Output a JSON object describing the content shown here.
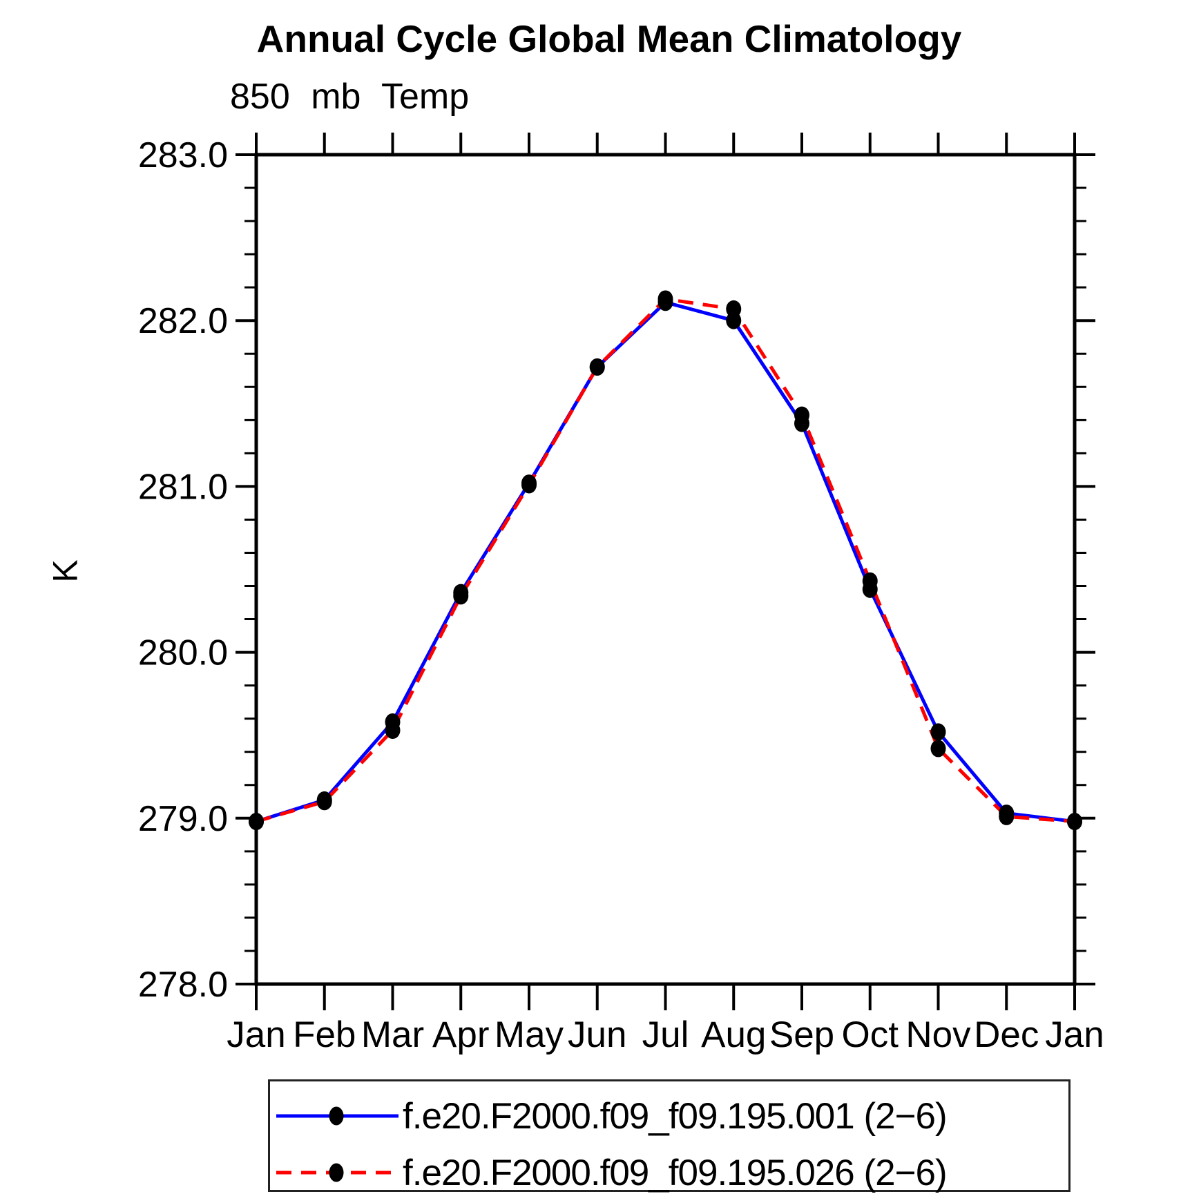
{
  "chart_data": {
    "type": "line",
    "title": "Annual Cycle Global Mean Climatology",
    "subtitle": "850 mb Temp",
    "ylabel": "K",
    "xlabel": "",
    "categories": [
      "Jan",
      "Feb",
      "Mar",
      "Apr",
      "May",
      "Jun",
      "Jul",
      "Aug",
      "Sep",
      "Oct",
      "Nov",
      "Dec",
      "Jan"
    ],
    "series": [
      {
        "name": "f.e20.F2000.f09_f09.195.001 (2−6)",
        "line_color": "#0000ff",
        "line_style": "solid",
        "marker": "filled-circle",
        "marker_color": "#000000",
        "values": [
          278.98,
          279.11,
          279.58,
          280.36,
          281.02,
          281.72,
          282.11,
          282.0,
          281.38,
          280.38,
          279.52,
          279.03,
          278.98
        ]
      },
      {
        "name": "f.e20.F2000.f09_f09.195.026 (2−6)",
        "line_color": "#ff0000",
        "line_style": "dashed",
        "marker": "filled-circle",
        "marker_color": "#000000",
        "values": [
          278.98,
          279.1,
          279.53,
          280.34,
          281.01,
          281.72,
          282.13,
          282.07,
          281.43,
          280.43,
          279.42,
          279.01,
          278.98
        ]
      }
    ],
    "ylim": [
      278.0,
      283.0
    ],
    "ytick_interval": 1.0,
    "yminor_interval": 0.2,
    "ytick_labels": [
      "278.0",
      "279.0",
      "280.0",
      "281.0",
      "282.0",
      "283.0"
    ],
    "grid": false,
    "frame": "box",
    "tick_direction": "out",
    "axis_color": "#000000",
    "legend_position": "bottom",
    "legend_border": true
  }
}
